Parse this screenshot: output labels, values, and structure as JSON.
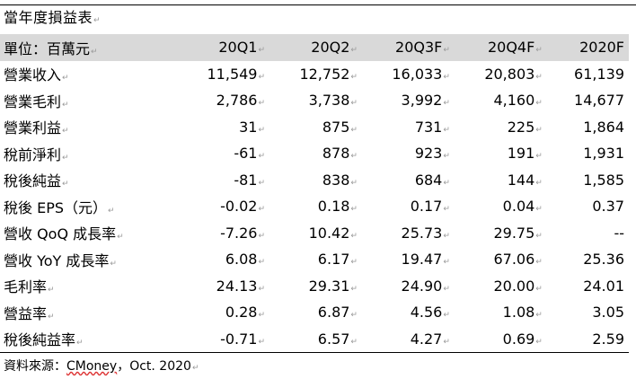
{
  "title": "當年度損益表",
  "header": {
    "unit_label": "單位：百萬元",
    "columns": [
      "20Q1",
      "20Q2",
      "20Q3F",
      "20Q4F",
      "2020F"
    ]
  },
  "rows": [
    {
      "label": "營業收入",
      "values": [
        "11,549",
        "12,752",
        "16,033",
        "20,803",
        "61,139"
      ]
    },
    {
      "label": "營業毛利",
      "values": [
        "2,786",
        "3,738",
        "3,992",
        "4,160",
        "14,677"
      ]
    },
    {
      "label": "營業利益",
      "values": [
        "31",
        "875",
        "731",
        "225",
        "1,864"
      ]
    },
    {
      "label": "稅前淨利",
      "values": [
        "-61",
        "878",
        "923",
        "191",
        "1,931"
      ]
    },
    {
      "label": "稅後純益",
      "values": [
        "-81",
        "838",
        "684",
        "144",
        "1,585"
      ]
    },
    {
      "label": "稅後 EPS（元）",
      "values": [
        "-0.02",
        "0.18",
        "0.17",
        "0.04",
        "0.37"
      ]
    },
    {
      "label": "營收 QoQ 成長率",
      "values": [
        "-7.26",
        "10.42",
        "25.73",
        "29.75",
        "--"
      ]
    },
    {
      "label": "營收 YoY 成長率",
      "values": [
        "6.08",
        "6.17",
        "19.47",
        "67.06",
        "25.36"
      ]
    },
    {
      "label": "毛利率",
      "values": [
        "24.13",
        "29.31",
        "24.90",
        "20.00",
        "24.01"
      ]
    },
    {
      "label": "營益率",
      "values": [
        "0.28",
        "6.87",
        "4.56",
        "1.08",
        "3.05"
      ]
    },
    {
      "label": "稅後純益率",
      "values": [
        "-0.71",
        "6.57",
        "4.27",
        "0.69",
        "2.59"
      ]
    }
  ],
  "source": {
    "prefix": "資料來源：",
    "name": "CMoney",
    "suffix": "，Oct. 2020"
  },
  "paragraph_mark": "↵"
}
